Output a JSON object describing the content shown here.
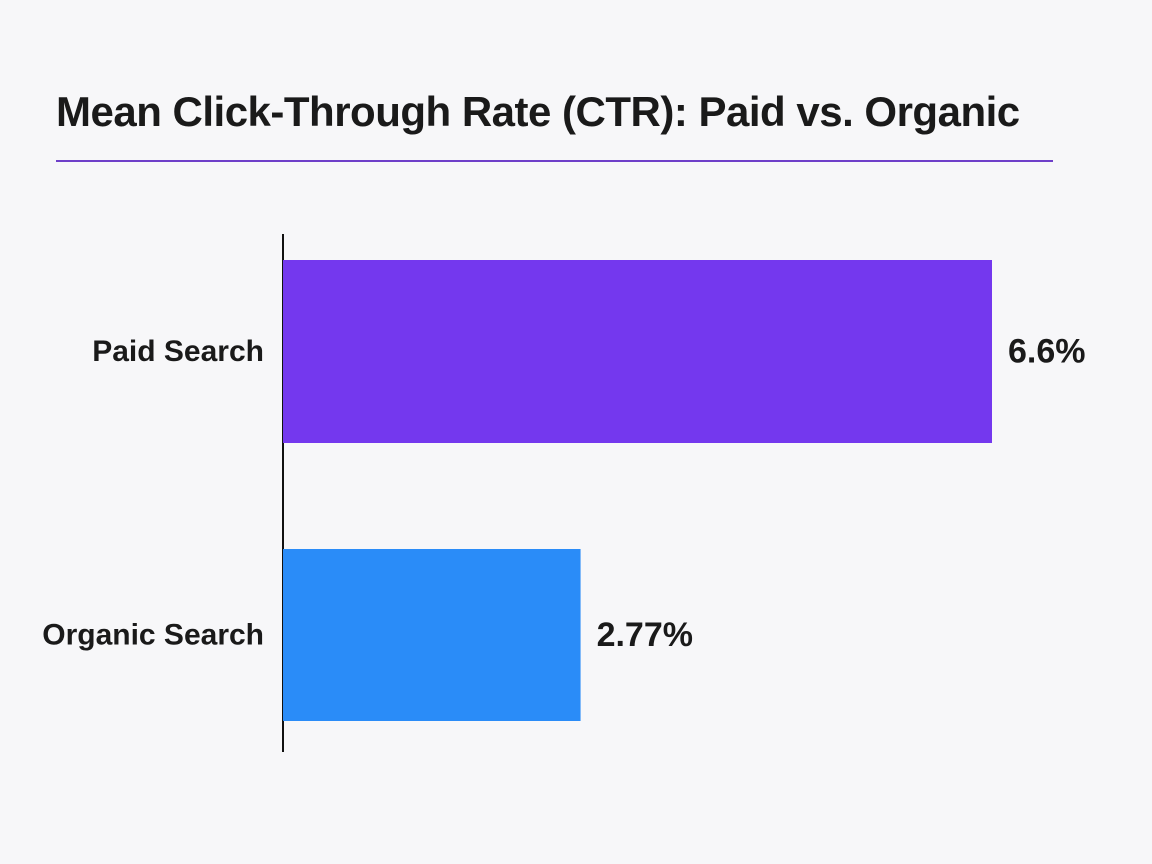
{
  "chart_data": {
    "type": "bar",
    "orientation": "horizontal",
    "title": "Mean Click-Through Rate (CTR): Paid vs. Organic",
    "categories": [
      "Paid Search",
      "Organic Search"
    ],
    "values": [
      6.6,
      2.77
    ],
    "value_labels": [
      "6.6%",
      "2.77%"
    ],
    "unit": "%",
    "colors": [
      "#7438ee",
      "#2a8cf8"
    ],
    "accent_color": "#6e3fc9",
    "grid": false,
    "legend": false,
    "xlim": [
      0,
      6.6
    ]
  }
}
